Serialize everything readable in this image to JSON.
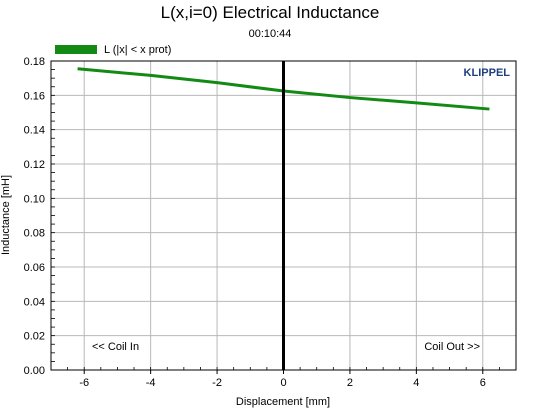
{
  "chart_data": {
    "type": "line",
    "title": "L(x,i=0) Electrical Inductance",
    "subtitle": "00:10:44",
    "xlabel": "Displacement [mm]",
    "ylabel": "Inductance [mH]",
    "xlim": [
      -7,
      7
    ],
    "ylim": [
      0,
      0.18
    ],
    "xticks": [
      "-6",
      "-4",
      "-2",
      "0",
      "2",
      "4",
      "6"
    ],
    "xtick_values": [
      -6,
      -4,
      -2,
      0,
      2,
      4,
      6
    ],
    "yticks": [
      "0.00",
      "0.02",
      "0.04",
      "0.06",
      "0.08",
      "0.10",
      "0.12",
      "0.14",
      "0.16",
      "0.18"
    ],
    "ytick_values": [
      0,
      0.02,
      0.04,
      0.06,
      0.08,
      0.1,
      0.12,
      0.14,
      0.16,
      0.18
    ],
    "grid": true,
    "legend_position": "top-left",
    "series": [
      {
        "name": "L (|x| < x prot)",
        "color": "#138a13",
        "x": [
          -6.2,
          -4,
          -2,
          0,
          2,
          4,
          6.2
        ],
        "y": [
          0.1755,
          0.1716,
          0.1674,
          0.1625,
          0.1587,
          0.1556,
          0.152
        ]
      }
    ],
    "vline": {
      "x": 0,
      "color": "#000000"
    },
    "annotations": {
      "left": "<< Coil In",
      "right": "Coil Out >>",
      "brand": "KLIPPEL"
    },
    "colors": {
      "grid": "#b8b8b8",
      "frame": "#000000",
      "brand": "#1f3f7f"
    }
  }
}
